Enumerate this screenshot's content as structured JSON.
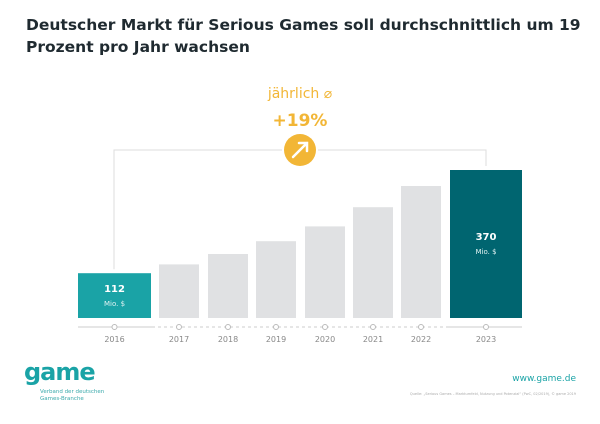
{
  "title": "Deutscher Markt für Serious Games soll durchschnittlich um 19 Prozent pro Jahr wachsen",
  "chart_data": {
    "type": "bar",
    "title": "Deutscher Markt für Serious Games soll durchschnittlich um 19 Prozent pro Jahr wachsen",
    "categories": [
      "2016",
      "2017",
      "2018",
      "2019",
      "2020",
      "2021",
      "2022",
      "2023"
    ],
    "values": [
      112,
      134,
      160,
      192,
      229,
      277,
      330,
      370
    ],
    "unit": "Mio. $",
    "data_labels": [
      {
        "category": "2016",
        "value": "112",
        "unit": "Mio. $"
      },
      {
        "category": "2023",
        "value": "370",
        "unit": "Mio. $"
      }
    ],
    "annotation": {
      "label": "jährlich ⌀",
      "value": "+19%",
      "icon": "arrow-up-right-icon"
    },
    "ylim": [
      0,
      400
    ],
    "grid": false,
    "colors": {
      "start": "#1aa3a6",
      "end": "#006570",
      "forecast": "#e0e1e3",
      "accent": "#f2b636"
    }
  },
  "footer": {
    "logo": "game",
    "logo_sub": "Verband der deutschen Games-Branche",
    "url": "www.game.de",
    "source": "Quelle: „Serious Games – Marktumfeld, Nutzung und Potenzial“ (PwC, 02/2019), © game 2019"
  }
}
